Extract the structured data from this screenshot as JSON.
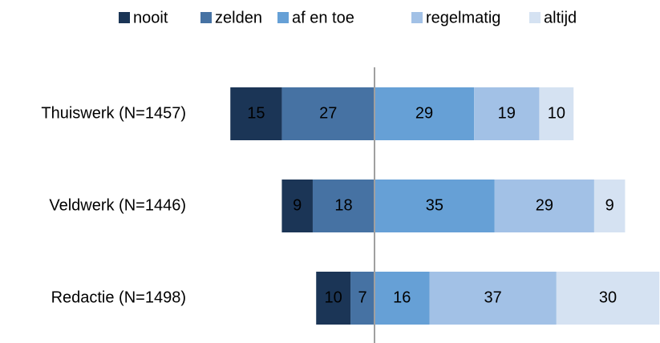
{
  "chart_data": {
    "type": "diverging_bar",
    "categories": [
      "Thuiswerk  (N=1457)",
      "Veldwerk (N=1446)",
      "Redactie (N=1498)"
    ],
    "series": [
      {
        "name": "nooit",
        "color": "#1b3556",
        "values": [
          15,
          9,
          10
        ]
      },
      {
        "name": "zelden",
        "color": "#4672a3",
        "values": [
          27,
          18,
          7
        ]
      },
      {
        "name": "af en toe",
        "color": "#66a0d6",
        "values": [
          29,
          35,
          16
        ]
      },
      {
        "name": "regelmatig",
        "color": "#a2c1e6",
        "values": [
          19,
          29,
          37
        ]
      },
      {
        "name": "altijd",
        "color": "#d5e2f2",
        "values": [
          10,
          9,
          30
        ]
      }
    ]
  }
}
